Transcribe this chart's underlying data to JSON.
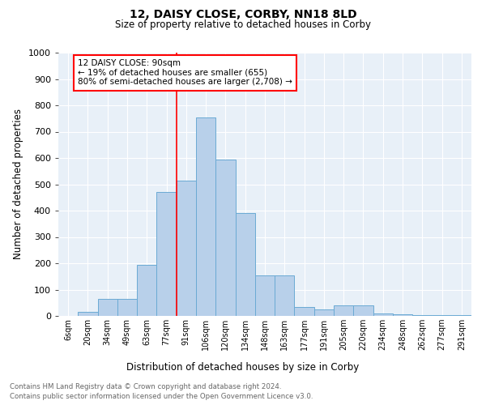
{
  "title1": "12, DAISY CLOSE, CORBY, NN18 8LD",
  "title2": "Size of property relative to detached houses in Corby",
  "xlabel": "Distribution of detached houses by size in Corby",
  "ylabel": "Number of detached properties",
  "categories": [
    "6sqm",
    "20sqm",
    "34sqm",
    "49sqm",
    "63sqm",
    "77sqm",
    "91sqm",
    "106sqm",
    "120sqm",
    "134sqm",
    "148sqm",
    "163sqm",
    "177sqm",
    "191sqm",
    "205sqm",
    "220sqm",
    "234sqm",
    "248sqm",
    "262sqm",
    "277sqm",
    "291sqm"
  ],
  "values": [
    0,
    15,
    65,
    65,
    195,
    470,
    515,
    755,
    595,
    390,
    155,
    155,
    35,
    25,
    40,
    40,
    10,
    5,
    2,
    2,
    2
  ],
  "bar_color": "#b8d0ea",
  "bar_edge_color": "#6aaad4",
  "vline_x_index": 6,
  "vline_color": "red",
  "annotation_text": "12 DAISY CLOSE: 90sqm\n← 19% of detached houses are smaller (655)\n80% of semi-detached houses are larger (2,708) →",
  "annotation_box_color": "white",
  "annotation_box_edge_color": "red",
  "ylim": [
    0,
    1000
  ],
  "yticks": [
    0,
    100,
    200,
    300,
    400,
    500,
    600,
    700,
    800,
    900,
    1000
  ],
  "footer1": "Contains HM Land Registry data © Crown copyright and database right 2024.",
  "footer2": "Contains public sector information licensed under the Open Government Licence v3.0.",
  "plot_bg_color": "#e8f0f8"
}
